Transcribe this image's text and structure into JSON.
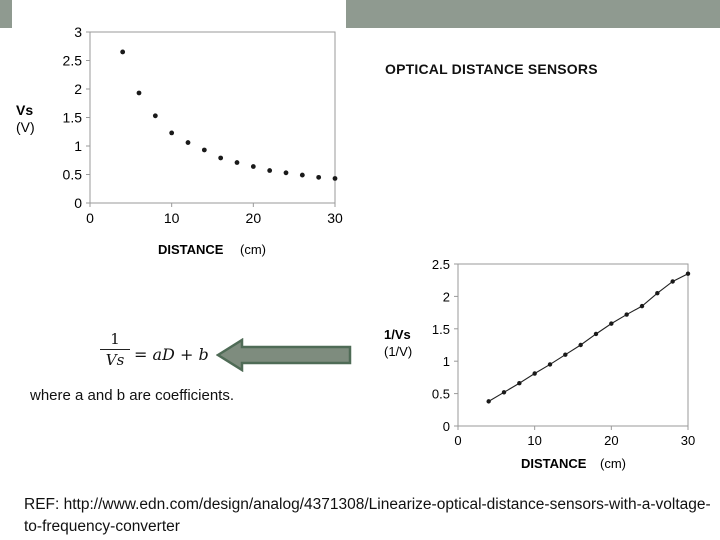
{
  "slide": {
    "title": "OPTICAL DISTANCE SENSORS",
    "formula": {
      "numerator": "1",
      "denominator": "Vs",
      "rhs": "= aD + b"
    },
    "caption": "where a and b are coefficients.",
    "reference": "REF: http://www.edn.com/design/analog/4371308/Linearize-optical-distance-sensors-with-a-voltage-to-frequency-converter"
  },
  "chart_data": [
    {
      "type": "scatter",
      "xlabel_bold": "DISTANCE",
      "xlabel_unit": "(cm)",
      "ylabel_bold": "Vs",
      "ylabel_unit": "(V)",
      "xlim": [
        0,
        30
      ],
      "ylim": [
        0,
        3
      ],
      "xticks": [
        "0",
        "10",
        "20",
        "30"
      ],
      "yticks": [
        "0",
        "0.5",
        "1",
        "1.5",
        "2",
        "2.5",
        "3"
      ],
      "grid": false,
      "x": [
        4,
        6,
        8,
        10,
        12,
        14,
        16,
        18,
        20,
        22,
        24,
        26,
        28,
        30
      ],
      "y": [
        2.65,
        1.93,
        1.53,
        1.23,
        1.06,
        0.93,
        0.79,
        0.71,
        0.64,
        0.57,
        0.53,
        0.49,
        0.45,
        0.43
      ]
    },
    {
      "type": "line",
      "xlabel_bold": "DISTANCE",
      "xlabel_unit": "(cm)",
      "ylabel_bold": "1/Vs",
      "ylabel_unit": "(1/V)",
      "xlim": [
        0,
        30
      ],
      "ylim": [
        0,
        2.5
      ],
      "xticks": [
        "0",
        "10",
        "20",
        "30"
      ],
      "yticks": [
        "0",
        "0.5",
        "1",
        "1.5",
        "2",
        "2.5"
      ],
      "grid": false,
      "x": [
        4,
        6,
        8,
        10,
        12,
        14,
        16,
        18,
        20,
        22,
        24,
        26,
        28,
        30
      ],
      "y": [
        0.38,
        0.52,
        0.66,
        0.81,
        0.95,
        1.1,
        1.25,
        1.42,
        1.58,
        1.72,
        1.85,
        2.05,
        2.23,
        2.35
      ]
    }
  ]
}
